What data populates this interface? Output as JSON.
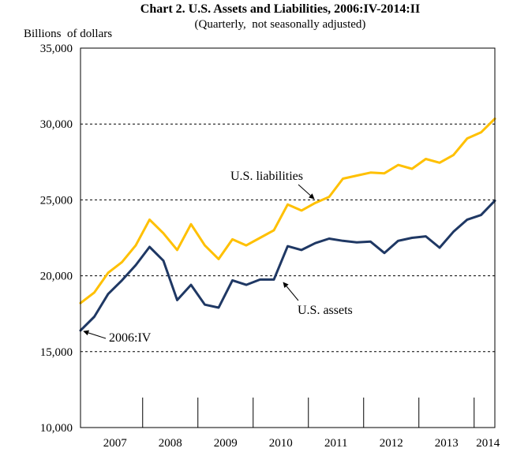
{
  "chart_data": {
    "type": "line",
    "title": "Chart 2. U.S. Assets and Liabilities, 2006:IV-2014:II",
    "subtitle": "(Quarterly,  not seasonally adjusted)",
    "ylabel": "Billions  of dollars",
    "xlabel": "",
    "ylim": [
      10000,
      35000
    ],
    "yticks": [
      10000,
      15000,
      20000,
      25000,
      30000,
      35000
    ],
    "ytick_labels": [
      "10,000",
      "15,000",
      "20,000",
      "25,000",
      "30,000",
      "35,000"
    ],
    "xtick_labels": [
      "2007",
      "2008",
      "2009",
      "2010",
      "2011",
      "2012",
      "2013",
      "2014"
    ],
    "grid": "horizontal dashed",
    "x": [
      "2006:IV",
      "2007:I",
      "2007:II",
      "2007:III",
      "2007:IV",
      "2008:I",
      "2008:II",
      "2008:III",
      "2008:IV",
      "2009:I",
      "2009:II",
      "2009:III",
      "2009:IV",
      "2010:I",
      "2010:II",
      "2010:III",
      "2010:IV",
      "2011:I",
      "2011:II",
      "2011:III",
      "2011:IV",
      "2012:I",
      "2012:II",
      "2012:III",
      "2012:IV",
      "2013:I",
      "2013:II",
      "2013:III",
      "2013:IV",
      "2014:I",
      "2014:II"
    ],
    "series": [
      {
        "name": "U.S. liabilities",
        "color": "#FFC000",
        "values": [
          18200,
          18900,
          20200,
          20900,
          22000,
          23700,
          22800,
          21700,
          23400,
          22000,
          21100,
          22400,
          22000,
          22500,
          23000,
          24700,
          24300,
          24800,
          25200,
          26400,
          26600,
          26800,
          26750,
          27300,
          27050,
          27700,
          27450,
          27950,
          29050,
          29450,
          30350
        ]
      },
      {
        "name": "U.S. assets",
        "color": "#1F3864",
        "values": [
          16400,
          17300,
          18800,
          19700,
          20700,
          21900,
          21000,
          18400,
          19400,
          18100,
          17900,
          19700,
          19400,
          19750,
          19750,
          21950,
          21700,
          22150,
          22450,
          22300,
          22200,
          22250,
          21500,
          22300,
          22500,
          22600,
          21850,
          22900,
          23700,
          24000,
          24950
        ]
      }
    ],
    "annotations": [
      {
        "text": "U.S. liabilities",
        "series": "U.S. liabilities",
        "point": "2011:I"
      },
      {
        "text": "U.S. assets",
        "series": "U.S. assets",
        "point": "2010:IV"
      },
      {
        "text": "2006:IV",
        "series": "U.S. assets",
        "point": "2006:IV"
      }
    ]
  }
}
